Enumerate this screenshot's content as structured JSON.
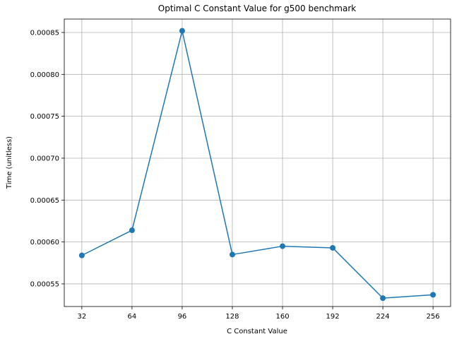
{
  "chart_data": {
    "type": "line",
    "title": "Optimal C Constant Value for g500 benchmark",
    "xlabel": "C Constant Value",
    "ylabel": "Time (unitless)",
    "x": [
      32,
      64,
      96,
      128,
      160,
      192,
      224,
      256
    ],
    "x_tick_labels": [
      "32",
      "64",
      "96",
      "128",
      "160",
      "192",
      "224",
      "256"
    ],
    "xlim": [
      20.8,
      267.2
    ],
    "ylim": [
      0.000523,
      0.000866
    ],
    "y_ticks": [
      0.00055,
      0.0006,
      0.00065,
      0.0007,
      0.00075,
      0.0008,
      0.00085
    ],
    "y_tick_labels": [
      "0.00055",
      "0.00060",
      "0.00065",
      "0.00070",
      "0.00075",
      "0.00080",
      "0.00085"
    ],
    "series": [
      {
        "values": [
          0.000584,
          0.000614,
          0.000852,
          0.000585,
          0.000595,
          0.000593,
          0.000533,
          0.000537
        ],
        "color": "#1f77b4",
        "marker": "circle"
      }
    ],
    "grid": true,
    "legend": false
  }
}
